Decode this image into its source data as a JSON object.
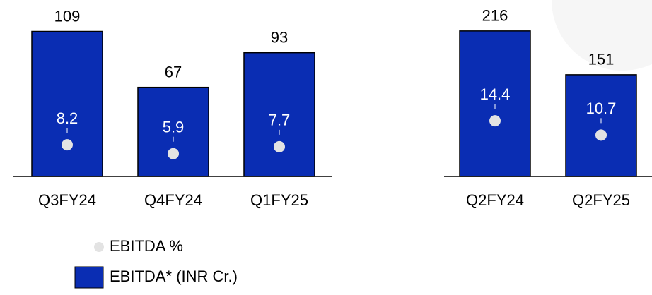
{
  "chart_data": [
    {
      "type": "bar",
      "categories": [
        "Q3FY24",
        "Q4FY24",
        "Q1FY25"
      ],
      "series": [
        {
          "color": "#0a2db3",
          "values": [
            109,
            67,
            93
          ]
        },
        {
          "color": "#e3e3e3",
          "axis": "y2",
          "values": [
            8.2,
            5.9,
            7.7
          ]
        }
      ],
      "ylim": [
        0,
        122
      ],
      "y2lim": [
        0,
        42
      ]
    },
    {
      "type": "bar",
      "categories": [
        "Q2FY24",
        "Q2FY25"
      ],
      "series": [
        {
          "color": "#0a2db3",
          "values": [
            216,
            151
          ]
        },
        {
          "color": "#e3e3e3",
          "axis": "y2",
          "values": [
            14.4,
            10.7
          ]
        }
      ],
      "ylim": [
        0,
        241
      ],
      "y2lim": [
        0,
        42
      ]
    }
  ],
  "legend": [
    {
      "name": "EBITDA %",
      "color": "#e3e3e3"
    },
    {
      "name": "EBITDA* (INR Cr.)",
      "color": "#0a2db3"
    }
  ]
}
